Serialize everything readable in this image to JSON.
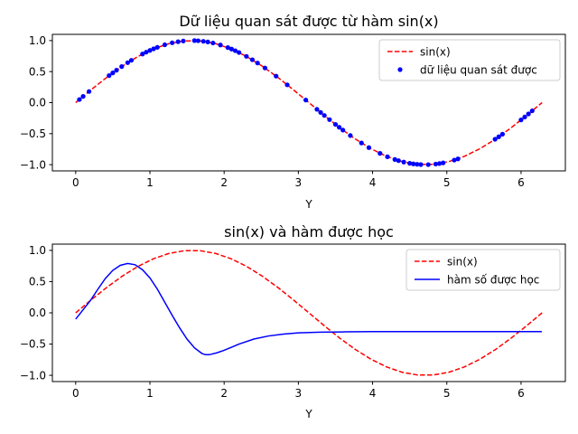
{
  "chart_data": [
    {
      "type": "scatter",
      "title": "Dữ liệu quan sát được từ hàm sin(x)",
      "xlabel": "Y",
      "ylabel": "",
      "xlim": [
        -0.314,
        6.597
      ],
      "ylim": [
        -1.1,
        1.1
      ],
      "xticks": [
        0,
        1,
        2,
        3,
        4,
        5,
        6
      ],
      "yticks": [
        -1.0,
        -0.5,
        0.0,
        0.5,
        1.0
      ],
      "xtick_labels": [
        "0",
        "1",
        "2",
        "3",
        "4",
        "5",
        "6"
      ],
      "ytick_labels": [
        "−1.0",
        "−0.5",
        "0.0",
        "0.5",
        "1.0"
      ],
      "legend_position": "top-right",
      "series": [
        {
          "name": "sin(x)",
          "kind": "line",
          "style": "dashed",
          "color": "#ff0000",
          "x": [
            0,
            0.209,
            0.419,
            0.628,
            0.838,
            1.047,
            1.257,
            1.466,
            1.676,
            1.885,
            2.094,
            2.304,
            2.513,
            2.723,
            2.932,
            3.142,
            3.351,
            3.56,
            3.77,
            3.979,
            4.189,
            4.398,
            4.608,
            4.817,
            5.027,
            5.236,
            5.445,
            5.655,
            5.864,
            6.074,
            6.283
          ],
          "y": [
            0,
            0.208,
            0.407,
            0.588,
            0.743,
            0.866,
            0.951,
            0.995,
            0.995,
            0.951,
            0.866,
            0.743,
            0.588,
            0.407,
            0.208,
            0,
            -0.208,
            -0.407,
            -0.588,
            -0.743,
            -0.866,
            -0.951,
            -0.995,
            -0.995,
            -0.951,
            -0.866,
            -0.743,
            -0.588,
            -0.407,
            -0.208,
            0
          ]
        },
        {
          "name": "dữ liệu quan sát được",
          "kind": "scatter",
          "color": "#0000ff",
          "x": [
            0.05,
            0.1,
            0.18,
            0.45,
            0.5,
            0.55,
            0.62,
            0.7,
            0.75,
            0.9,
            0.95,
            1.0,
            1.05,
            1.1,
            1.2,
            1.3,
            1.38,
            1.45,
            1.6,
            1.65,
            1.72,
            1.78,
            1.85,
            1.95,
            2.05,
            2.1,
            2.15,
            2.2,
            2.3,
            2.38,
            2.45,
            2.55,
            2.7,
            2.85,
            3.1,
            3.25,
            3.3,
            3.35,
            3.42,
            3.5,
            3.55,
            3.6,
            3.7,
            3.85,
            3.95,
            4.1,
            4.2,
            4.3,
            4.35,
            4.42,
            4.5,
            4.55,
            4.6,
            4.65,
            4.75,
            4.85,
            4.9,
            4.95,
            5.1,
            5.15,
            5.65,
            5.7,
            5.75,
            6.0,
            6.05,
            6.1,
            6.15
          ],
          "y": [
            0.05,
            0.1,
            0.179,
            0.435,
            0.479,
            0.523,
            0.581,
            0.644,
            0.682,
            0.783,
            0.813,
            0.841,
            0.867,
            0.891,
            0.932,
            0.964,
            0.982,
            0.993,
            1.0,
            0.997,
            0.988,
            0.978,
            0.961,
            0.929,
            0.887,
            0.863,
            0.837,
            0.808,
            0.746,
            0.691,
            0.638,
            0.558,
            0.427,
            0.287,
            0.042,
            -0.108,
            -0.158,
            -0.207,
            -0.274,
            -0.351,
            -0.397,
            -0.443,
            -0.53,
            -0.65,
            -0.725,
            -0.818,
            -0.872,
            -0.916,
            -0.935,
            -0.958,
            -0.978,
            -0.987,
            -0.994,
            -0.998,
            -0.999,
            -0.99,
            -0.982,
            -0.971,
            -0.926,
            -0.907,
            -0.59,
            -0.55,
            -0.508,
            -0.279,
            -0.231,
            -0.182,
            -0.132
          ]
        }
      ]
    },
    {
      "type": "line",
      "title": "sin(x) và hàm được học",
      "xlabel": "Y",
      "ylabel": "",
      "xlim": [
        -0.314,
        6.597
      ],
      "ylim": [
        -1.1,
        1.1
      ],
      "xticks": [
        0,
        1,
        2,
        3,
        4,
        5,
        6
      ],
      "yticks": [
        -1.0,
        -0.5,
        0.0,
        0.5,
        1.0
      ],
      "xtick_labels": [
        "0",
        "1",
        "2",
        "3",
        "4",
        "5",
        "6"
      ],
      "ytick_labels": [
        "−1.0",
        "−0.5",
        "0.0",
        "0.5",
        "1.0"
      ],
      "legend_position": "top-right",
      "series": [
        {
          "name": "sin(x)",
          "kind": "line",
          "style": "dashed",
          "color": "#ff0000",
          "x": [
            0,
            0.209,
            0.419,
            0.628,
            0.838,
            1.047,
            1.257,
            1.466,
            1.676,
            1.885,
            2.094,
            2.304,
            2.513,
            2.723,
            2.932,
            3.142,
            3.351,
            3.56,
            3.77,
            3.979,
            4.189,
            4.398,
            4.608,
            4.817,
            5.027,
            5.236,
            5.445,
            5.655,
            5.864,
            6.074,
            6.283
          ],
          "y": [
            0,
            0.208,
            0.407,
            0.588,
            0.743,
            0.866,
            0.951,
            0.995,
            0.995,
            0.951,
            0.866,
            0.743,
            0.588,
            0.407,
            0.208,
            0,
            -0.208,
            -0.407,
            -0.588,
            -0.743,
            -0.866,
            -0.951,
            -0.995,
            -0.995,
            -0.951,
            -0.866,
            -0.743,
            -0.588,
            -0.407,
            -0.208,
            0
          ]
        },
        {
          "name": "hàm số được học",
          "kind": "line",
          "style": "solid",
          "color": "#0000ff",
          "x": [
            0,
            0.1,
            0.2,
            0.3,
            0.4,
            0.5,
            0.6,
            0.7,
            0.8,
            0.9,
            1.0,
            1.1,
            1.2,
            1.3,
            1.4,
            1.5,
            1.6,
            1.7,
            1.75,
            1.8,
            1.9,
            2.0,
            2.2,
            2.4,
            2.6,
            2.8,
            3.0,
            3.3,
            3.6,
            4.0,
            4.5,
            5.0,
            5.5,
            6.0,
            6.28
          ],
          "y": [
            -0.1,
            0.05,
            0.2,
            0.38,
            0.55,
            0.68,
            0.76,
            0.79,
            0.77,
            0.69,
            0.56,
            0.38,
            0.17,
            -0.04,
            -0.24,
            -0.42,
            -0.56,
            -0.65,
            -0.67,
            -0.67,
            -0.64,
            -0.6,
            -0.5,
            -0.42,
            -0.37,
            -0.34,
            -0.32,
            -0.31,
            -0.305,
            -0.3,
            -0.3,
            -0.3,
            -0.3,
            -0.3,
            -0.3
          ]
        }
      ]
    }
  ]
}
